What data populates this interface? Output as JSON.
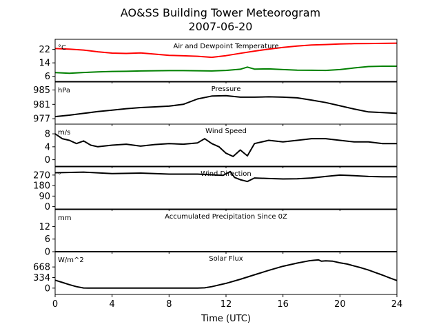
{
  "title_line1": "AO&SS Building Tower Meteorogram",
  "title_line2": "2007-06-20",
  "xlabel": "Time (UTC)",
  "chart_data": {
    "type": "line",
    "x_range": [
      0,
      24
    ],
    "x_ticks": [
      0,
      4,
      8,
      12,
      16,
      20,
      24
    ],
    "panels": [
      {
        "key": "temp",
        "title": "Air and Dewpoint Temperature",
        "unit": "°C",
        "ylim": [
          3,
          28
        ],
        "yticks": [
          22,
          14,
          6
        ],
        "series": [
          {
            "color": "#ff0000",
            "points": [
              [
                0,
                22.5
              ],
              [
                1,
                22.2
              ],
              [
                2,
                21.6
              ],
              [
                3,
                20.6
              ],
              [
                4,
                19.8
              ],
              [
                5,
                19.6
              ],
              [
                6,
                19.9
              ],
              [
                7,
                19.2
              ],
              [
                8,
                18.5
              ],
              [
                9,
                18.2
              ],
              [
                10,
                17.9
              ],
              [
                11,
                17.3
              ],
              [
                12,
                18.3
              ],
              [
                13,
                19.7
              ],
              [
                14,
                21.0
              ],
              [
                15,
                22.2
              ],
              [
                16,
                23.2
              ],
              [
                17,
                24.0
              ],
              [
                18,
                24.6
              ],
              [
                19,
                24.9
              ],
              [
                20,
                25.2
              ],
              [
                21,
                25.4
              ],
              [
                22,
                25.5
              ],
              [
                23,
                25.6
              ],
              [
                24,
                25.7
              ]
            ]
          },
          {
            "color": "#008000",
            "points": [
              [
                0,
                8.2
              ],
              [
                1,
                7.8
              ],
              [
                2,
                8.3
              ],
              [
                3,
                8.6
              ],
              [
                4,
                8.9
              ],
              [
                5,
                9.0
              ],
              [
                6,
                9.2
              ],
              [
                7,
                9.3
              ],
              [
                8,
                9.4
              ],
              [
                9,
                9.4
              ],
              [
                10,
                9.3
              ],
              [
                11,
                9.2
              ],
              [
                12,
                9.5
              ],
              [
                13,
                10.2
              ],
              [
                13.5,
                11.5
              ],
              [
                14,
                10.3
              ],
              [
                15,
                10.4
              ],
              [
                16,
                10.0
              ],
              [
                17,
                9.7
              ],
              [
                18,
                9.6
              ],
              [
                19,
                9.5
              ],
              [
                20,
                10.0
              ],
              [
                21,
                11.0
              ],
              [
                22,
                11.8
              ],
              [
                23,
                12.0
              ],
              [
                24,
                12.0
              ]
            ]
          }
        ]
      },
      {
        "key": "pressure",
        "title": "Pressure",
        "unit": "hPa",
        "ylim": [
          975.5,
          987.2
        ],
        "yticks": [
          985,
          981,
          977
        ],
        "series": [
          {
            "color": "#000000",
            "points": [
              [
                0,
                977.6
              ],
              [
                1,
                978.0
              ],
              [
                2,
                978.5
              ],
              [
                3,
                979.0
              ],
              [
                4,
                979.4
              ],
              [
                5,
                979.8
              ],
              [
                6,
                980.1
              ],
              [
                7,
                980.3
              ],
              [
                8,
                980.5
              ],
              [
                9,
                981.0
              ],
              [
                10,
                982.5
              ],
              [
                11,
                983.3
              ],
              [
                12,
                983.4
              ],
              [
                13,
                983.0
              ],
              [
                14,
                983.0
              ],
              [
                15,
                983.1
              ],
              [
                16,
                983.0
              ],
              [
                17,
                982.8
              ],
              [
                18,
                982.2
              ],
              [
                19,
                981.5
              ],
              [
                20,
                980.6
              ],
              [
                21,
                979.7
              ],
              [
                22,
                978.9
              ],
              [
                23,
                978.7
              ],
              [
                24,
                978.5
              ]
            ]
          }
        ]
      },
      {
        "key": "wind_speed",
        "title": "Wind Speed",
        "unit": "m/s",
        "ylim": [
          -2,
          11
        ],
        "yticks": [
          8,
          4,
          0
        ],
        "series": [
          {
            "color": "#000000",
            "points": [
              [
                0,
                8.0
              ],
              [
                0.5,
                6.5
              ],
              [
                1,
                6.0
              ],
              [
                1.5,
                5.0
              ],
              [
                2,
                5.8
              ],
              [
                2.5,
                4.5
              ],
              [
                3,
                4.0
              ],
              [
                4,
                4.5
              ],
              [
                5,
                4.8
              ],
              [
                6,
                4.2
              ],
              [
                7,
                4.7
              ],
              [
                8,
                5.0
              ],
              [
                9,
                4.8
              ],
              [
                10,
                5.2
              ],
              [
                10.5,
                6.5
              ],
              [
                11,
                5.0
              ],
              [
                11.5,
                4.0
              ],
              [
                12,
                2.0
              ],
              [
                12.5,
                1.0
              ],
              [
                13,
                3.0
              ],
              [
                13.5,
                1.2
              ],
              [
                14,
                5.0
              ],
              [
                15,
                6.0
              ],
              [
                16,
                5.5
              ],
              [
                17,
                6.0
              ],
              [
                18,
                6.5
              ],
              [
                19,
                6.5
              ],
              [
                20,
                6.0
              ],
              [
                21,
                5.5
              ],
              [
                22,
                5.5
              ],
              [
                23,
                5.0
              ],
              [
                24,
                5.0
              ]
            ]
          }
        ]
      },
      {
        "key": "wind_dir",
        "title": "Wind Direction",
        "unit": "°",
        "ylim": [
          -20,
          340
        ],
        "yticks": [
          270,
          180,
          90,
          0
        ],
        "series": [
          {
            "color": "#000000",
            "points": [
              [
                0,
                290
              ],
              [
                2,
                295
              ],
              [
                4,
                282
              ],
              [
                6,
                287
              ],
              [
                8,
                278
              ],
              [
                10,
                278
              ],
              [
                11,
                272
              ],
              [
                11.8,
                268
              ],
              [
                12.3,
                300
              ],
              [
                12.6,
                250
              ],
              [
                13,
                230
              ],
              [
                13.5,
                215
              ],
              [
                14,
                245
              ],
              [
                15,
                240
              ],
              [
                16,
                237
              ],
              [
                17,
                238
              ],
              [
                18,
                245
              ],
              [
                19,
                258
              ],
              [
                20,
                270
              ],
              [
                21,
                265
              ],
              [
                22,
                258
              ],
              [
                23,
                255
              ],
              [
                24,
                255
              ]
            ]
          }
        ]
      },
      {
        "key": "precip",
        "title": "Accumulated Precipitation Since 0Z",
        "unit": "mm",
        "ylim": [
          0,
          20
        ],
        "yticks": [
          12,
          6,
          0
        ],
        "series": [
          {
            "color": "#000000",
            "points": [
              [
                0,
                0
              ],
              [
                24,
                0
              ]
            ]
          }
        ]
      },
      {
        "key": "solar",
        "title": "Solar Flux",
        "unit": "W/m^2",
        "ylim": [
          -200,
          1150
        ],
        "yticks": [
          668,
          334,
          0
        ],
        "series": [
          {
            "color": "#000000",
            "points": [
              [
                0,
                250
              ],
              [
                0.5,
                180
              ],
              [
                1,
                110
              ],
              [
                1.5,
                45
              ],
              [
                2,
                5
              ],
              [
                2.5,
                0
              ],
              [
                4,
                0
              ],
              [
                6,
                0
              ],
              [
                8,
                0
              ],
              [
                10,
                0
              ],
              [
                10.5,
                10
              ],
              [
                11,
                45
              ],
              [
                12,
                150
              ],
              [
                13,
                280
              ],
              [
                14,
                420
              ],
              [
                15,
                560
              ],
              [
                16,
                690
              ],
              [
                17,
                790
              ],
              [
                17.8,
                860
              ],
              [
                18.2,
                880
              ],
              [
                18.5,
                890
              ],
              [
                18.7,
                850
              ],
              [
                19,
                860
              ],
              [
                19.5,
                850
              ],
              [
                20,
                800
              ],
              [
                20.5,
                760
              ],
              [
                21,
                700
              ],
              [
                21.5,
                640
              ],
              [
                22,
                570
              ],
              [
                22.5,
                490
              ],
              [
                23,
                410
              ],
              [
                23.5,
                320
              ],
              [
                24,
                240
              ]
            ]
          }
        ]
      }
    ]
  }
}
